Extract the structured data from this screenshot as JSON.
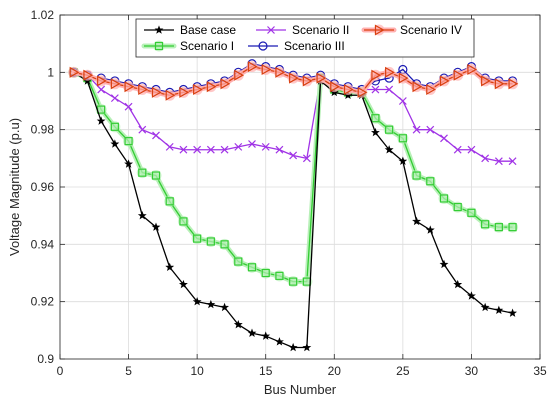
{
  "chart_data": {
    "type": "line",
    "xlabel": "Bus Number",
    "ylabel": "Voltage Magnitude (p.u)",
    "xlim": [
      0,
      35
    ],
    "ylim": [
      0.9,
      1.02
    ],
    "xticks": [
      0,
      5,
      10,
      15,
      20,
      25,
      30,
      35
    ],
    "yticks": [
      0.9,
      0.92,
      0.94,
      0.96,
      0.98,
      1,
      1.02
    ],
    "xtick_labels": [
      "0",
      "5",
      "10",
      "15",
      "20",
      "25",
      "30",
      "35"
    ],
    "ytick_labels": [
      "0.9",
      "0.92",
      "0.94",
      "0.96",
      "0.98",
      "1",
      "1.02"
    ],
    "grid": true,
    "legend_position": "top",
    "x": [
      1,
      2,
      3,
      4,
      5,
      6,
      7,
      8,
      9,
      10,
      11,
      12,
      13,
      14,
      15,
      16,
      17,
      18,
      19,
      20,
      21,
      22,
      23,
      24,
      25,
      26,
      27,
      28,
      29,
      30,
      31,
      32,
      33
    ],
    "series": [
      {
        "name": "Base case",
        "color": "#000000",
        "marker": "star",
        "values": [
          1.0,
          0.997,
          0.983,
          0.975,
          0.968,
          0.95,
          0.946,
          0.932,
          0.926,
          0.92,
          0.919,
          0.918,
          0.912,
          0.909,
          0.908,
          0.906,
          0.904,
          0.904,
          0.997,
          0.993,
          0.992,
          0.992,
          0.979,
          0.973,
          0.969,
          0.948,
          0.945,
          0.933,
          0.926,
          0.922,
          0.918,
          0.917,
          0.916
        ]
      },
      {
        "name": "Scenario I",
        "color": "#33cc33",
        "glow": "#b8f0b8",
        "marker": "square",
        "values": [
          1.0,
          0.998,
          0.987,
          0.981,
          0.976,
          0.965,
          0.964,
          0.955,
          0.948,
          0.942,
          0.941,
          0.94,
          0.934,
          0.932,
          0.93,
          0.929,
          0.927,
          0.927,
          0.998,
          0.994,
          0.993,
          0.993,
          0.984,
          0.98,
          0.977,
          0.964,
          0.962,
          0.956,
          0.953,
          0.951,
          0.947,
          0.946,
          0.946
        ]
      },
      {
        "name": "Scenario II",
        "color": "#a033e6",
        "marker": "x",
        "values": [
          1.0,
          0.999,
          0.994,
          0.991,
          0.988,
          0.98,
          0.978,
          0.974,
          0.973,
          0.973,
          0.973,
          0.973,
          0.974,
          0.975,
          0.974,
          0.973,
          0.971,
          0.97,
          0.998,
          0.995,
          0.994,
          0.994,
          0.994,
          0.994,
          0.99,
          0.98,
          0.98,
          0.977,
          0.973,
          0.973,
          0.97,
          0.969,
          0.969
        ]
      },
      {
        "name": "Scenario III",
        "color": "#1a1ab3",
        "marker": "circle",
        "values": [
          1.0,
          0.999,
          0.998,
          0.997,
          0.996,
          0.995,
          0.994,
          0.993,
          0.994,
          0.995,
          0.996,
          0.997,
          1.0,
          1.003,
          1.002,
          1.001,
          0.999,
          0.998,
          0.999,
          0.996,
          0.995,
          0.994,
          0.997,
          0.998,
          1.001,
          0.996,
          0.995,
          0.998,
          1.0,
          1.002,
          0.998,
          0.997,
          0.997
        ]
      },
      {
        "name": "Scenario IV",
        "color": "#d94010",
        "glow": "#ffb0b0",
        "marker": "triangle-right",
        "values": [
          1.0,
          0.999,
          0.997,
          0.996,
          0.995,
          0.994,
          0.993,
          0.992,
          0.993,
          0.994,
          0.995,
          0.996,
          0.999,
          1.002,
          1.001,
          1.0,
          0.998,
          0.997,
          0.998,
          0.995,
          0.994,
          0.993,
          0.999,
          1.0,
          0.998,
          0.995,
          0.994,
          0.997,
          0.999,
          1.001,
          0.997,
          0.996,
          0.996
        ]
      }
    ],
    "legend_layout": [
      [
        "Base case",
        "Scenario II",
        "Scenario IV"
      ],
      [
        "Scenario I",
        "Scenario III"
      ]
    ]
  }
}
